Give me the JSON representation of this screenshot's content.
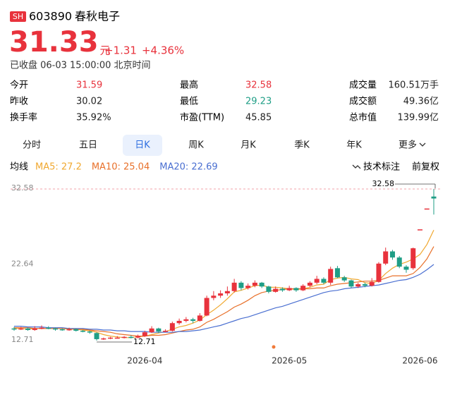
{
  "header": {
    "market": "SH",
    "code": "603890",
    "name": "春秋电子"
  },
  "quote": {
    "price": "31.33",
    "unit": "元",
    "change": "+1.31",
    "change_pct": "+4.36%",
    "color": "#e8323c",
    "status": "已收盘 06-03 15:00:00 北京时间"
  },
  "stats": [
    [
      {
        "label": "今开",
        "value": "31.59",
        "color": "#e8323c"
      },
      {
        "label": "最高",
        "value": "32.58",
        "color": "#e8323c"
      },
      {
        "label": "成交量",
        "value": "160.51万手"
      }
    ],
    [
      {
        "label": "昨收",
        "value": "30.02"
      },
      {
        "label": "最低",
        "value": "29.23",
        "color": "#1f9e86"
      },
      {
        "label": "成交额",
        "value": "49.36亿"
      }
    ],
    [
      {
        "label": "换手率",
        "value": "35.92%"
      },
      {
        "label": "市盈(TTM)",
        "value": "45.85"
      },
      {
        "label": "总市值",
        "value": "139.99亿"
      }
    ]
  ],
  "tabs": [
    "分时",
    "五日",
    "日K",
    "周K",
    "月K",
    "季K",
    "年K",
    "更多"
  ],
  "active_tab": 2,
  "indicator_bar": {
    "label": "均线",
    "tools": [
      "技术标注",
      "前复权"
    ]
  },
  "chart_data": {
    "type": "candlestick",
    "up_color": "#e8323c",
    "down_color": "#1f9e86",
    "categories": [
      null,
      null,
      null,
      null,
      null,
      null,
      null,
      null,
      null,
      null,
      null,
      null,
      null,
      null,
      null,
      null,
      null,
      null,
      null,
      "2026-04",
      null,
      null,
      null,
      null,
      null,
      null,
      null,
      null,
      null,
      null,
      null,
      null,
      null,
      null,
      null,
      null,
      null,
      null,
      null,
      null,
      "2026-05",
      null,
      null,
      null,
      null,
      null,
      null,
      null,
      null,
      null,
      null,
      null,
      null,
      null,
      null,
      null,
      null,
      null,
      null,
      "2026-06",
      null,
      null
    ],
    "open": [
      14.3,
      14.2,
      14.3,
      14.1,
      14.3,
      14.4,
      14.3,
      14.2,
      14.1,
      14.2,
      14.0,
      13.9,
      13.7,
      12.9,
      13.0,
      13.1,
      13.1,
      13.2,
      13.1,
      13.3,
      13.8,
      14.3,
      13.9,
      14.0,
      15.0,
      15.3,
      15.5,
      15.3,
      16.0,
      18.3,
      18.6,
      18.9,
      19.2,
      20.3,
      19.6,
      19.9,
      20.3,
      19.8,
      19.1,
      19.5,
      19.3,
      19.6,
      19.3,
      19.9,
      20.3,
      20.8,
      20.3,
      22.2,
      21.0,
      20.6,
      19.8,
      20.1,
      19.9,
      20.4,
      22.8,
      24.4,
      23.6,
      22.4,
      22.2,
      27.29,
      30.02,
      31.59
    ],
    "high": [
      14.5,
      14.5,
      14.4,
      14.6,
      14.7,
      14.6,
      14.4,
      14.3,
      14.4,
      14.3,
      14.1,
      14.0,
      13.8,
      13.1,
      13.2,
      13.3,
      13.3,
      13.4,
      13.5,
      14.0,
      14.6,
      14.4,
      14.2,
      15.2,
      15.6,
      15.8,
      15.7,
      16.3,
      18.6,
      19.2,
      19.3,
      19.8,
      20.8,
      20.5,
      20.2,
      20.6,
      20.4,
      19.9,
      19.8,
      19.7,
      19.9,
      19.7,
      20.1,
      20.5,
      21.2,
      21.0,
      22.4,
      22.5,
      21.2,
      20.7,
      20.3,
      20.3,
      20.9,
      23.0,
      24.9,
      24.6,
      23.8,
      22.6,
      24.9,
      27.29,
      30.02,
      32.58
    ],
    "low": [
      14.0,
      14.1,
      14.0,
      14.0,
      14.2,
      14.2,
      14.0,
      14.0,
      14.0,
      13.9,
      13.8,
      13.6,
      12.71,
      12.8,
      12.9,
      13.0,
      13.0,
      13.0,
      13.0,
      13.2,
      13.7,
      13.7,
      13.8,
      13.9,
      14.8,
      15.1,
      15.0,
      15.2,
      15.9,
      18.0,
      18.3,
      18.6,
      19.0,
      19.3,
      19.4,
      19.7,
      19.6,
      18.9,
      19.0,
      19.1,
      19.2,
      19.1,
      19.2,
      19.7,
      20.1,
      20.1,
      20.0,
      20.9,
      20.4,
      19.6,
      19.6,
      19.7,
      19.8,
      20.3,
      22.6,
      23.3,
      22.2,
      21.6,
      22.0,
      27.29,
      30.02,
      29.23
    ],
    "close": [
      14.2,
      14.3,
      14.1,
      14.3,
      14.4,
      14.3,
      14.2,
      14.1,
      14.2,
      14.0,
      13.9,
      13.8,
      12.9,
      13.0,
      13.1,
      13.1,
      13.2,
      13.1,
      13.3,
      13.8,
      14.3,
      13.9,
      14.0,
      15.0,
      15.3,
      15.5,
      15.3,
      16.0,
      18.3,
      18.6,
      18.9,
      19.2,
      20.3,
      19.6,
      19.9,
      20.3,
      19.8,
      19.1,
      19.5,
      19.3,
      19.6,
      19.3,
      19.9,
      20.3,
      20.8,
      20.3,
      22.1,
      21.0,
      20.6,
      19.8,
      20.1,
      19.9,
      20.4,
      22.8,
      24.4,
      23.6,
      22.4,
      22.0,
      24.81,
      27.29,
      30.02,
      31.33
    ],
    "series": [
      {
        "name": "MA5",
        "label": "MA5: 27.2",
        "color": "#f0a830",
        "values": [
          14.3,
          14.3,
          14.2,
          14.3,
          14.3,
          14.3,
          14.3,
          14.3,
          14.2,
          14.2,
          14.1,
          14.0,
          13.8,
          13.5,
          13.3,
          13.2,
          13.1,
          13.1,
          13.2,
          13.3,
          13.5,
          13.7,
          13.9,
          14.2,
          14.5,
          14.7,
          15.0,
          15.4,
          16.1,
          16.7,
          17.4,
          18.2,
          19.1,
          19.3,
          19.6,
          19.9,
          20.0,
          19.7,
          19.7,
          19.6,
          19.5,
          19.4,
          19.5,
          19.7,
          20.0,
          20.1,
          20.7,
          20.9,
          21.0,
          20.8,
          20.7,
          20.3,
          20.2,
          20.6,
          21.5,
          22.2,
          22.7,
          23.0,
          23.4,
          24.0,
          25.3,
          27.2
        ]
      },
      {
        "name": "MA10",
        "label": "MA10: 25.04",
        "color": "#e8702a",
        "values": [
          14.4,
          14.4,
          14.4,
          14.3,
          14.3,
          14.3,
          14.3,
          14.3,
          14.3,
          14.2,
          14.2,
          14.1,
          14.0,
          13.9,
          13.8,
          13.6,
          13.5,
          13.4,
          13.3,
          13.3,
          13.4,
          13.4,
          13.5,
          13.7,
          13.9,
          14.1,
          14.2,
          14.5,
          15.1,
          15.5,
          16.0,
          16.5,
          17.1,
          17.5,
          18.0,
          18.6,
          19.0,
          19.2,
          19.3,
          19.4,
          19.5,
          19.5,
          19.5,
          19.5,
          19.6,
          19.6,
          19.9,
          20.1,
          20.2,
          20.3,
          20.4,
          20.5,
          20.5,
          20.6,
          20.9,
          21.2,
          21.2,
          21.2,
          21.5,
          22.3,
          23.4,
          25.04
        ]
      },
      {
        "name": "MA20",
        "label": "MA20: 22.69",
        "color": "#4a6fd1",
        "values": [
          14.6,
          14.6,
          14.5,
          14.5,
          14.5,
          14.4,
          14.4,
          14.4,
          14.3,
          14.3,
          14.3,
          14.2,
          14.2,
          14.1,
          14.1,
          14.0,
          14.0,
          13.9,
          13.9,
          13.9,
          13.8,
          13.8,
          13.8,
          13.8,
          13.9,
          13.9,
          14.0,
          14.1,
          14.3,
          14.5,
          14.7,
          15.0,
          15.3,
          15.6,
          15.8,
          16.1,
          16.4,
          16.7,
          17.0,
          17.2,
          17.5,
          17.8,
          18.1,
          18.4,
          18.7,
          19.0,
          19.2,
          19.3,
          19.5,
          19.6,
          19.7,
          19.8,
          19.9,
          20.0,
          20.2,
          20.4,
          20.6,
          20.7,
          21.0,
          21.4,
          22.0,
          22.69
        ]
      }
    ],
    "ylim": [
      11.14,
      33.78
    ],
    "yticks": [
      12.71,
      22.64,
      32.58
    ],
    "grid": false,
    "high_label": "32.58",
    "low_label": "12.71"
  }
}
